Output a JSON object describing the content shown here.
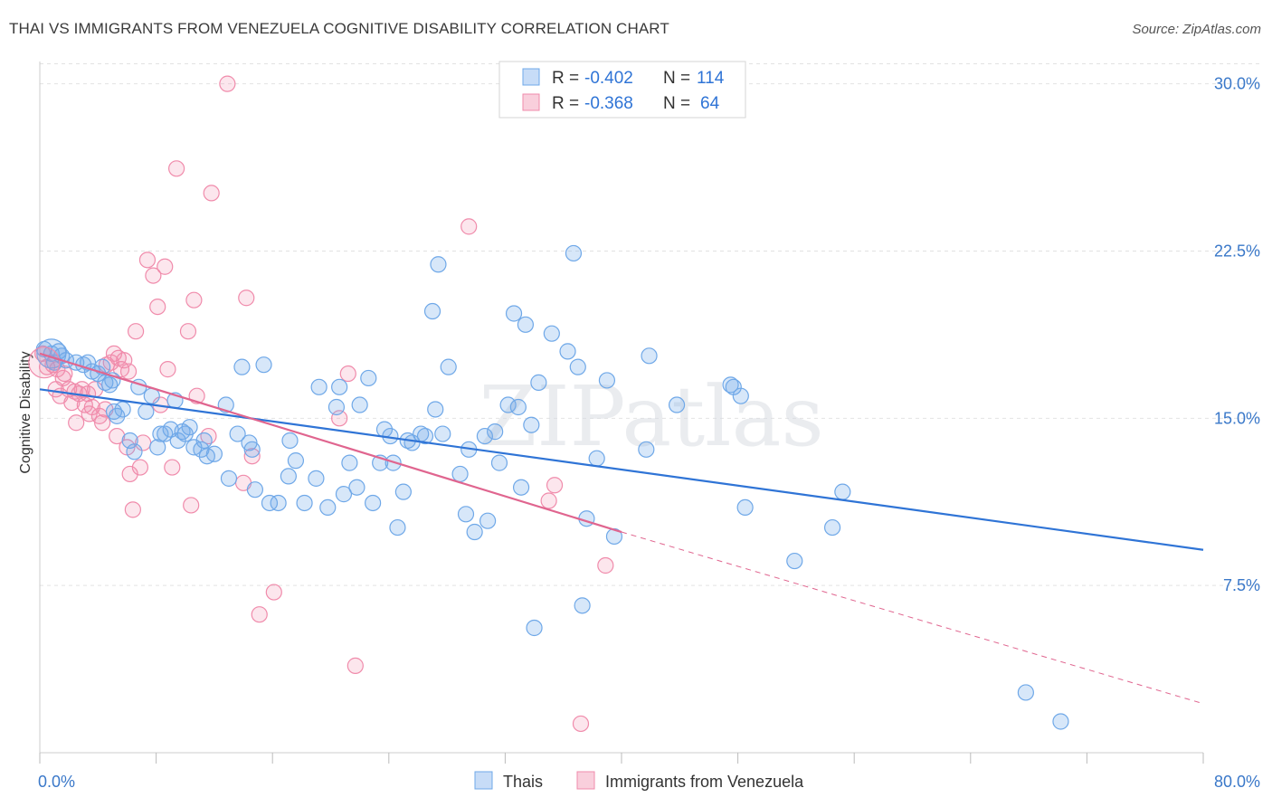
{
  "title": "THAI VS IMMIGRANTS FROM VENEZUELA COGNITIVE DISABILITY CORRELATION CHART",
  "source": "Source: ZipAtlas.com",
  "watermark": "ZIPatlas",
  "chart_data": {
    "type": "scatter",
    "ylabel": "Cognitive Disability",
    "xlim": [
      0,
      80
    ],
    "ylim": [
      0,
      31
    ],
    "x_tick_labels": [
      {
        "value": 0,
        "label": "0.0%"
      },
      {
        "value": 80,
        "label": "80.0%"
      }
    ],
    "y_ticks": [
      {
        "value": 7.5,
        "label": "7.5%"
      },
      {
        "value": 15,
        "label": "15.0%"
      },
      {
        "value": 22.5,
        "label": "22.5%"
      },
      {
        "value": 30,
        "label": "30.0%"
      }
    ],
    "legend_stats": [
      {
        "r_label": "R =",
        "r_value": "-0.402",
        "n_label": "N =",
        "n_value": "114",
        "color": "#6fa8e8"
      },
      {
        "r_label": "R =",
        "r_value": "-0.368",
        "n_label": "N =",
        "n_value": "64",
        "color": "#f08bab"
      }
    ],
    "series": [
      {
        "name": "Thais",
        "color": "#6fa8e8",
        "line_color": "#2f74d6",
        "trend": {
          "x0": 0,
          "y0": 16.3,
          "x1": 80,
          "y1": 9.1
        },
        "points": [
          [
            0.3,
            18.1
          ],
          [
            0.8,
            17.9
          ],
          [
            1.0,
            17.5
          ],
          [
            1.3,
            18.0
          ],
          [
            1.5,
            17.8
          ],
          [
            1.8,
            17.6
          ],
          [
            2.5,
            17.5
          ],
          [
            3.0,
            17.4
          ],
          [
            3.3,
            17.5
          ],
          [
            3.6,
            17.1
          ],
          [
            4.0,
            17.0
          ],
          [
            4.3,
            17.3
          ],
          [
            4.5,
            16.6
          ],
          [
            4.8,
            16.5
          ],
          [
            5.0,
            16.7
          ],
          [
            5.1,
            15.3
          ],
          [
            5.3,
            15.1
          ],
          [
            5.7,
            15.4
          ],
          [
            6.2,
            14.0
          ],
          [
            6.5,
            13.5
          ],
          [
            6.8,
            16.4
          ],
          [
            7.3,
            15.3
          ],
          [
            7.7,
            16.0
          ],
          [
            8.1,
            13.7
          ],
          [
            8.3,
            14.3
          ],
          [
            8.6,
            14.3
          ],
          [
            9.0,
            14.5
          ],
          [
            9.3,
            15.8
          ],
          [
            9.5,
            14.0
          ],
          [
            9.8,
            14.4
          ],
          [
            10.0,
            14.3
          ],
          [
            10.3,
            14.6
          ],
          [
            10.6,
            13.7
          ],
          [
            11.1,
            13.6
          ],
          [
            11.3,
            14.0
          ],
          [
            11.5,
            13.3
          ],
          [
            12.0,
            13.4
          ],
          [
            12.8,
            15.6
          ],
          [
            13.0,
            12.3
          ],
          [
            13.6,
            14.3
          ],
          [
            13.9,
            17.3
          ],
          [
            14.4,
            13.9
          ],
          [
            14.6,
            13.6
          ],
          [
            14.8,
            11.8
          ],
          [
            15.4,
            17.4
          ],
          [
            15.8,
            11.2
          ],
          [
            16.4,
            11.2
          ],
          [
            17.1,
            12.4
          ],
          [
            17.2,
            14.0
          ],
          [
            17.6,
            13.1
          ],
          [
            18.2,
            11.2
          ],
          [
            19.0,
            12.3
          ],
          [
            19.2,
            16.4
          ],
          [
            19.8,
            11.0
          ],
          [
            20.4,
            15.5
          ],
          [
            20.6,
            16.4
          ],
          [
            20.9,
            11.6
          ],
          [
            21.3,
            13.0
          ],
          [
            21.8,
            11.9
          ],
          [
            22.0,
            15.6
          ],
          [
            22.6,
            16.8
          ],
          [
            22.9,
            11.2
          ],
          [
            23.4,
            13.0
          ],
          [
            23.7,
            14.5
          ],
          [
            24.1,
            14.2
          ],
          [
            24.3,
            13.0
          ],
          [
            24.6,
            10.1
          ],
          [
            25.0,
            11.7
          ],
          [
            25.3,
            14.0
          ],
          [
            25.6,
            13.9
          ],
          [
            26.2,
            14.3
          ],
          [
            26.5,
            14.2
          ],
          [
            27.0,
            19.8
          ],
          [
            27.2,
            15.4
          ],
          [
            27.4,
            21.9
          ],
          [
            27.7,
            14.3
          ],
          [
            28.1,
            17.3
          ],
          [
            28.9,
            12.5
          ],
          [
            29.3,
            10.7
          ],
          [
            29.5,
            13.6
          ],
          [
            29.9,
            9.9
          ],
          [
            30.6,
            14.2
          ],
          [
            30.8,
            10.4
          ],
          [
            31.3,
            14.4
          ],
          [
            31.6,
            13.0
          ],
          [
            32.2,
            15.6
          ],
          [
            32.6,
            19.7
          ],
          [
            32.9,
            15.5
          ],
          [
            33.1,
            11.9
          ],
          [
            33.4,
            19.2
          ],
          [
            33.8,
            14.7
          ],
          [
            34.3,
            16.6
          ],
          [
            35.2,
            18.8
          ],
          [
            36.3,
            18.0
          ],
          [
            36.7,
            22.4
          ],
          [
            37.0,
            17.3
          ],
          [
            37.3,
            6.6
          ],
          [
            37.6,
            10.5
          ],
          [
            38.3,
            13.2
          ],
          [
            39.0,
            16.7
          ],
          [
            39.5,
            9.7
          ],
          [
            41.7,
            13.6
          ],
          [
            41.9,
            17.8
          ],
          [
            43.8,
            15.6
          ],
          [
            47.5,
            16.5
          ],
          [
            47.7,
            16.4
          ],
          [
            48.2,
            16.0
          ],
          [
            48.5,
            11.0
          ],
          [
            51.9,
            8.6
          ],
          [
            54.5,
            10.1
          ],
          [
            55.2,
            11.7
          ],
          [
            67.8,
            2.7
          ],
          [
            70.2,
            1.4
          ],
          [
            34.0,
            5.6
          ]
        ]
      },
      {
        "name": "Immigrants from Venezuela",
        "color": "#f08bab",
        "line_color": "#e0658f",
        "trend": {
          "x0": 0,
          "y0": 17.9,
          "x1": 40,
          "y1": 9.9
        },
        "trend_dashed": {
          "x0": 40,
          "y0": 9.9,
          "x1": 80,
          "y1": 2.2
        },
        "points": [
          [
            0.2,
            17.9
          ],
          [
            0.5,
            17.3
          ],
          [
            0.9,
            17.4
          ],
          [
            1.1,
            16.3
          ],
          [
            1.2,
            17.2
          ],
          [
            1.4,
            16.0
          ],
          [
            1.6,
            16.8
          ],
          [
            1.7,
            17.0
          ],
          [
            2.0,
            16.3
          ],
          [
            2.2,
            15.7
          ],
          [
            2.4,
            16.2
          ],
          [
            2.5,
            14.8
          ],
          [
            2.7,
            16.1
          ],
          [
            2.9,
            16.3
          ],
          [
            3.1,
            15.6
          ],
          [
            3.3,
            16.1
          ],
          [
            3.4,
            15.2
          ],
          [
            3.6,
            15.5
          ],
          [
            3.8,
            16.3
          ],
          [
            4.1,
            15.1
          ],
          [
            4.3,
            14.8
          ],
          [
            4.5,
            15.4
          ],
          [
            4.6,
            17.4
          ],
          [
            4.9,
            17.5
          ],
          [
            5.1,
            17.9
          ],
          [
            5.3,
            14.2
          ],
          [
            5.4,
            17.7
          ],
          [
            5.6,
            17.2
          ],
          [
            5.8,
            17.6
          ],
          [
            6.0,
            13.7
          ],
          [
            6.1,
            17.1
          ],
          [
            6.2,
            12.5
          ],
          [
            6.4,
            10.9
          ],
          [
            6.6,
            18.9
          ],
          [
            6.9,
            12.8
          ],
          [
            7.1,
            13.9
          ],
          [
            7.4,
            22.1
          ],
          [
            7.8,
            21.4
          ],
          [
            8.1,
            20.0
          ],
          [
            8.3,
            15.6
          ],
          [
            8.6,
            21.8
          ],
          [
            8.8,
            17.2
          ],
          [
            9.1,
            12.8
          ],
          [
            9.4,
            26.2
          ],
          [
            10.2,
            18.9
          ],
          [
            10.4,
            11.1
          ],
          [
            10.6,
            20.3
          ],
          [
            10.8,
            16.0
          ],
          [
            11.6,
            14.2
          ],
          [
            11.8,
            25.1
          ],
          [
            14.0,
            12.1
          ],
          [
            14.2,
            20.4
          ],
          [
            14.6,
            13.3
          ],
          [
            15.1,
            6.2
          ],
          [
            16.1,
            7.2
          ],
          [
            20.6,
            15.0
          ],
          [
            21.2,
            17.0
          ],
          [
            21.7,
            3.9
          ],
          [
            29.5,
            23.6
          ],
          [
            35.0,
            11.3
          ],
          [
            35.4,
            12.0
          ],
          [
            37.2,
            1.3
          ],
          [
            38.9,
            8.4
          ],
          [
            12.9,
            30.0
          ]
        ]
      }
    ]
  }
}
